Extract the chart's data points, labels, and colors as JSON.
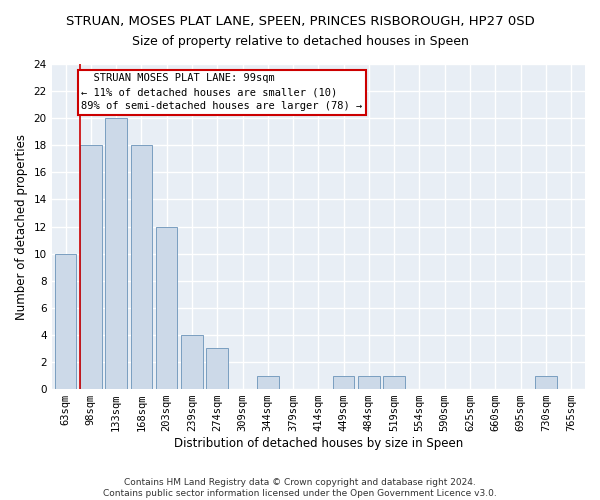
{
  "title": "STRUAN, MOSES PLAT LANE, SPEEN, PRINCES RISBOROUGH, HP27 0SD",
  "subtitle": "Size of property relative to detached houses in Speen",
  "xlabel": "Distribution of detached houses by size in Speen",
  "ylabel": "Number of detached properties",
  "categories": [
    "63sqm",
    "98sqm",
    "133sqm",
    "168sqm",
    "203sqm",
    "239sqm",
    "274sqm",
    "309sqm",
    "344sqm",
    "379sqm",
    "414sqm",
    "449sqm",
    "484sqm",
    "519sqm",
    "554sqm",
    "590sqm",
    "625sqm",
    "660sqm",
    "695sqm",
    "730sqm",
    "765sqm"
  ],
  "values": [
    10,
    18,
    20,
    18,
    12,
    4,
    3,
    0,
    1,
    0,
    0,
    1,
    1,
    1,
    0,
    0,
    0,
    0,
    0,
    1,
    0
  ],
  "bar_color": "#ccd9e8",
  "bar_edge_color": "#7a9ec0",
  "property_line_color": "#cc0000",
  "annotation_text": "  STRUAN MOSES PLAT LANE: 99sqm  \n← 11% of detached houses are smaller (10)\n89% of semi-detached houses are larger (78) →",
  "annotation_box_color": "#ffffff",
  "annotation_box_edge": "#cc0000",
  "ylim": [
    0,
    24
  ],
  "yticks": [
    0,
    2,
    4,
    6,
    8,
    10,
    12,
    14,
    16,
    18,
    20,
    22,
    24
  ],
  "footer_line1": "Contains HM Land Registry data © Crown copyright and database right 2024.",
  "footer_line2": "Contains public sector information licensed under the Open Government Licence v3.0.",
  "background_color": "#ffffff",
  "plot_background_color": "#e8eef5",
  "grid_color": "#ffffff",
  "title_fontsize": 9.5,
  "subtitle_fontsize": 9,
  "axis_label_fontsize": 8.5,
  "tick_fontsize": 7.5,
  "footer_fontsize": 6.5
}
